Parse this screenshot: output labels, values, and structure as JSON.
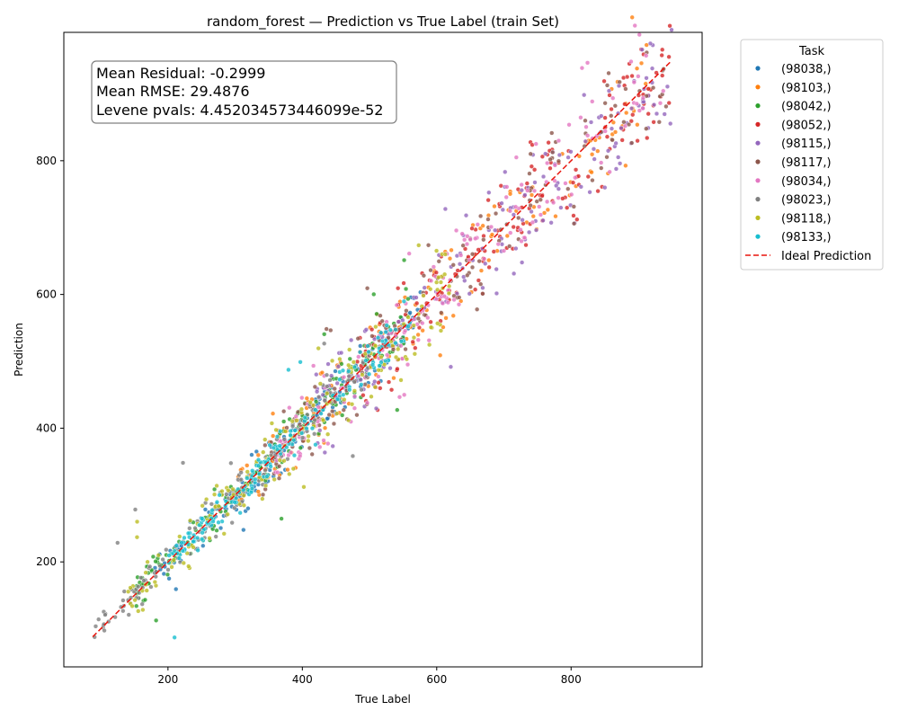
{
  "chart_data": {
    "type": "scatter",
    "title": "random_forest — Prediction vs True Label (train Set)",
    "xlabel": "True Label",
    "ylabel": "Prediction",
    "xlim": [
      45,
      995
    ],
    "ylim": [
      43,
      992
    ],
    "xticks": [
      200,
      400,
      600,
      800
    ],
    "yticks": [
      200,
      400,
      600,
      800
    ],
    "grid": false,
    "legend_title": "Task",
    "legend_position": "outside-top-right",
    "stats_lines": [
      "Mean Residual: -0.2999",
      "Mean RMSE: 29.4876",
      "Levene pvals: 4.452034573446099e-52"
    ],
    "ideal_line": {
      "name": "Ideal Prediction",
      "x": [
        88,
        950
      ],
      "y": [
        88,
        950
      ],
      "color": "#e8140c"
    },
    "series": [
      {
        "name": "(98038,)",
        "color": "#1f77b4",
        "x_range": [
          180,
          580
        ],
        "noise": 16
      },
      {
        "name": "(98103,)",
        "color": "#ff7f0e",
        "x_range": [
          300,
          920
        ],
        "noise": 26
      },
      {
        "name": "(98042,)",
        "color": "#2ca02c",
        "x_range": [
          150,
          560
        ],
        "noise": 18
      },
      {
        "name": "(98052,)",
        "color": "#d62728",
        "x_range": [
          480,
          950
        ],
        "noise": 28
      },
      {
        "name": "(98115,)",
        "color": "#9467bd",
        "x_range": [
          420,
          950
        ],
        "noise": 32
      },
      {
        "name": "(98117,)",
        "color": "#8c564b",
        "x_range": [
          340,
          950
        ],
        "noise": 26
      },
      {
        "name": "(98034,)",
        "color": "#e377c2",
        "x_range": [
          360,
          940
        ],
        "noise": 26
      },
      {
        "name": "(98023,)",
        "color": "#7f7f7f",
        "x_range": [
          90,
          500
        ],
        "noise": 16
      },
      {
        "name": "(98118,)",
        "color": "#bcbd22",
        "x_range": [
          140,
          620
        ],
        "noise": 24
      },
      {
        "name": "(98133,)",
        "color": "#17becf",
        "x_range": [
          200,
          560
        ],
        "noise": 14
      }
    ]
  }
}
